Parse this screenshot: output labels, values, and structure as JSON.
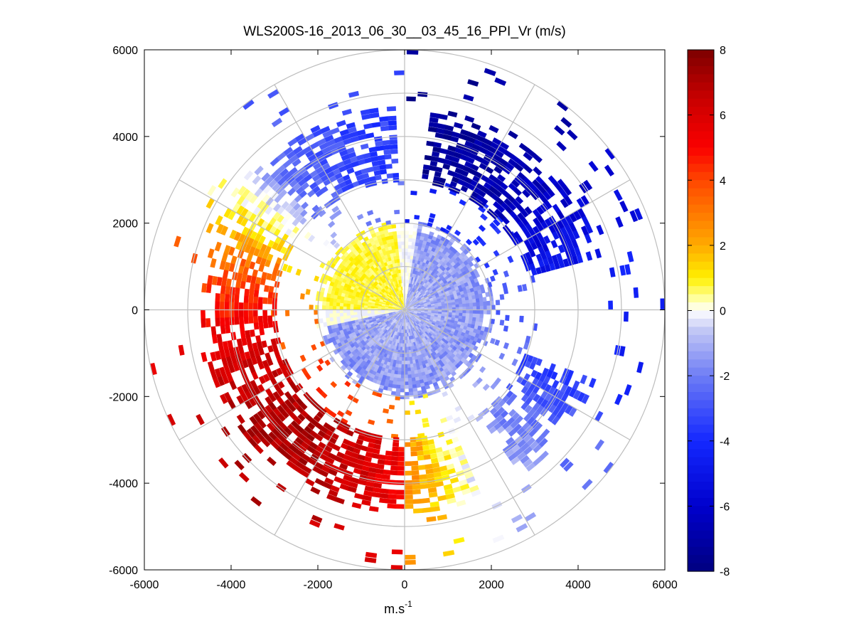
{
  "chart_data": {
    "type": "heatmap",
    "subtype": "polar-ppi",
    "title": "WLS200S-16_2013_06_30__03_45_16_PPI_Vr (m/s)",
    "xlabel": "m.s",
    "xlabel_superscript": "-1",
    "ylabel": "",
    "xlim": [
      -6000,
      6000
    ],
    "ylim": [
      -6000,
      6000
    ],
    "xticks": [
      -6000,
      -4000,
      -2000,
      0,
      2000,
      4000,
      6000
    ],
    "yticks": [
      6000,
      4000,
      2000,
      0,
      -2000,
      -4000,
      -6000
    ],
    "x_tick_labels": [
      "-6000",
      "-4000",
      "-2000",
      "0",
      "2000",
      "4000",
      "6000"
    ],
    "y_tick_labels": [
      "6000",
      "4000",
      "2000",
      "0",
      "-2000",
      "-4000",
      "-6000"
    ],
    "range_rings": [
      1000,
      2000,
      3000,
      4000,
      5000,
      6000
    ],
    "spoke_angles_deg": [
      0,
      30,
      60,
      90,
      120,
      150,
      180,
      210,
      240,
      270,
      300,
      330
    ],
    "colorbar": {
      "min": -8,
      "max": 8,
      "ticks": [
        8,
        6,
        4,
        2,
        0,
        -2,
        -4,
        -6,
        -8
      ],
      "tick_labels": [
        "8",
        "6",
        "4",
        "2",
        "0",
        "-2",
        "-4",
        "-6",
        "-8"
      ],
      "colormap": "blue-white-yellow-red"
    },
    "regions": [
      {
        "name": "inner-near-range",
        "range_m": [
          0,
          2000
        ],
        "sector": "north-west",
        "value_ms": 0.5
      },
      {
        "name": "inner-near-range",
        "range_m": [
          0,
          2000
        ],
        "sector": "south-east",
        "value_ms": -1.2
      },
      {
        "name": "outer-ring",
        "range_m": [
          3500,
          4600
        ],
        "sector": "north-east",
        "value_ms": -7
      },
      {
        "name": "outer-ring",
        "range_m": [
          3500,
          4600
        ],
        "sector": "west",
        "value_ms": 6
      },
      {
        "name": "outer-ring",
        "range_m": [
          3500,
          4600
        ],
        "sector": "south-west",
        "value_ms": 7
      }
    ]
  }
}
